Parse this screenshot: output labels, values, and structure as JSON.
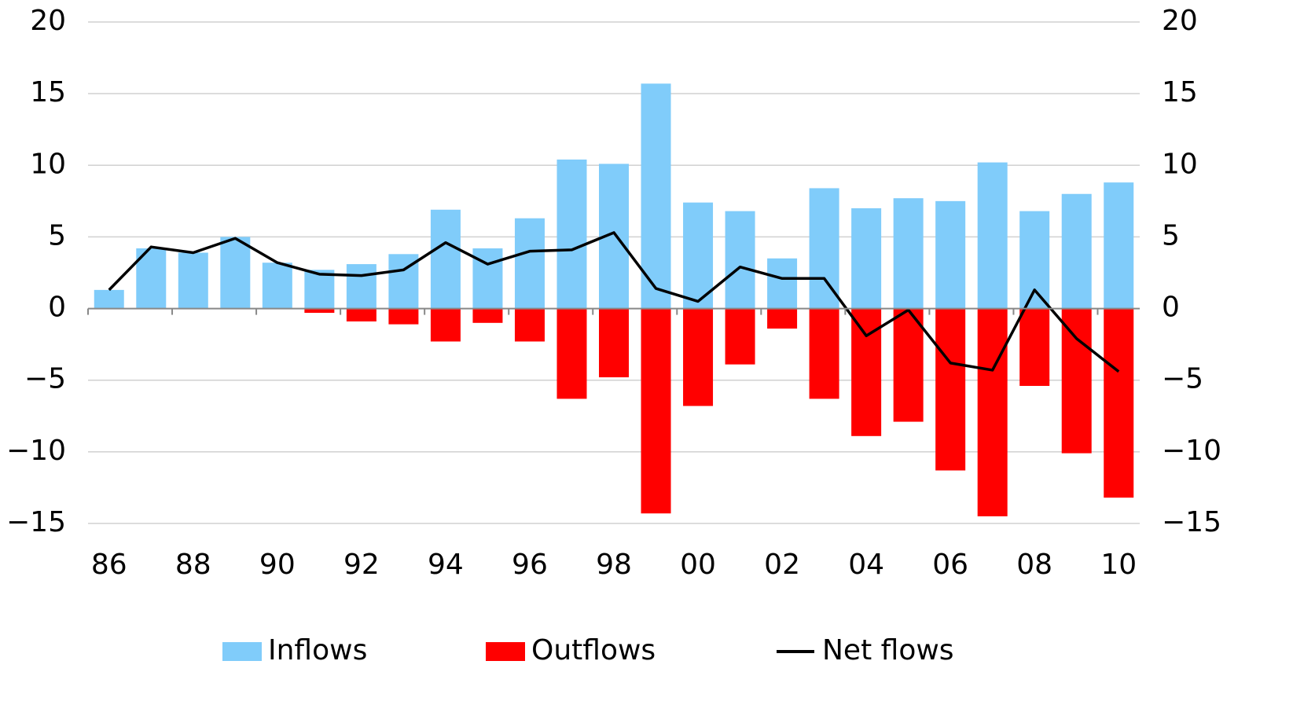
{
  "chart_data": {
    "type": "bar",
    "categories": [
      "86",
      null,
      "88",
      null,
      "90",
      null,
      "92",
      null,
      "94",
      null,
      "96",
      null,
      "98",
      null,
      "00",
      null,
      "02",
      null,
      "04",
      null,
      "06",
      null,
      "08",
      null,
      "10"
    ],
    "series": [
      {
        "name": "Inflows",
        "color": "#80ccfa",
        "values": [
          1.3,
          4.2,
          3.9,
          5.0,
          3.2,
          2.7,
          3.1,
          3.8,
          6.9,
          4.2,
          6.3,
          10.4,
          10.1,
          15.7,
          7.4,
          6.8,
          3.5,
          8.4,
          7.0,
          7.7,
          7.5,
          10.2,
          6.8,
          8.0,
          8.8
        ]
      },
      {
        "name": "Outflows",
        "color": "#ff0000",
        "values": [
          0,
          0,
          0,
          0,
          0,
          -0.3,
          -0.9,
          -1.1,
          -2.3,
          -1.0,
          -2.3,
          -6.3,
          -4.8,
          -14.3,
          -6.8,
          -3.9,
          -1.4,
          -6.3,
          -8.9,
          -7.9,
          -11.3,
          -14.5,
          -5.4,
          -10.1,
          -13.2
        ]
      },
      {
        "name": "Net flows",
        "type": "line",
        "color": "#000000",
        "values": [
          1.3,
          4.3,
          3.9,
          4.9,
          3.2,
          2.4,
          2.3,
          2.7,
          4.6,
          3.1,
          4.0,
          4.1,
          5.3,
          1.4,
          0.5,
          2.9,
          2.1,
          2.1,
          -1.9,
          -0.1,
          -3.8,
          -4.3,
          1.3,
          -2.1,
          -4.4
        ]
      }
    ],
    "ylim": [
      -15,
      20
    ],
    "yticks": [
      {
        "value": -15,
        "label": "−15"
      },
      {
        "value": -10,
        "label": "−10"
      },
      {
        "value": -5,
        "label": "−5"
      },
      0,
      5,
      10,
      15,
      20
    ],
    "y2lim": [
      -15,
      20
    ],
    "y2ticks": [
      {
        "value": -15,
        "label": "−15"
      },
      {
        "value": -10,
        "label": "−10"
      },
      {
        "value": -5,
        "label": "−5"
      },
      0,
      5,
      10,
      15,
      20
    ],
    "grid": true
  }
}
